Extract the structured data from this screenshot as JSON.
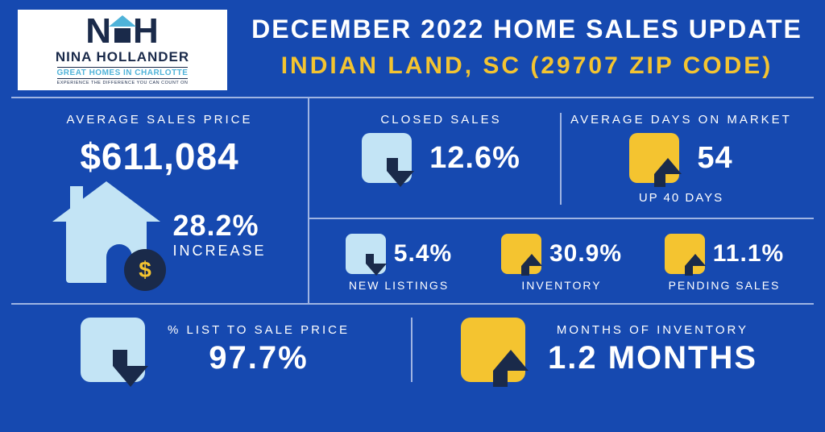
{
  "colors": {
    "background": "#1649b0",
    "divider": "#9fb4e2",
    "accent_yellow": "#f4c430",
    "accent_lightblue": "#c3e4f5",
    "arrow_dark": "#1a2a4a",
    "text_white": "#ffffff"
  },
  "logo": {
    "letter_left": "N",
    "letter_right": "H",
    "name": "NINA HOLLANDER",
    "subtitle": "GREAT HOMES IN CHARLOTTE",
    "tagline": "EXPERIENCE THE DIFFERENCE YOU CAN COUNT ON"
  },
  "header": {
    "title": "DECEMBER 2022 HOME SALES UPDATE",
    "subtitle": "INDIAN LAND, SC (29707 ZIP CODE)",
    "subtitle_color": "#f4c430"
  },
  "avg_price": {
    "label": "AVERAGE SALES PRICE",
    "value": "$611,084",
    "change_pct": "28.2%",
    "change_label": "INCREASE",
    "coin_symbol": "$"
  },
  "closed_sales": {
    "label": "CLOSED SALES",
    "direction": "down",
    "box_color": "#c3e4f5",
    "value": "12.6%"
  },
  "days_on_market": {
    "label": "AVERAGE DAYS ON MARKET",
    "direction": "up",
    "box_color": "#f4c430",
    "value": "54",
    "subtext": "UP 40 DAYS"
  },
  "new_listings": {
    "direction": "down",
    "box_color": "#c3e4f5",
    "value": "5.4%",
    "label": "NEW LISTINGS"
  },
  "inventory": {
    "direction": "up",
    "box_color": "#f4c430",
    "value": "30.9%",
    "label": "INVENTORY"
  },
  "pending_sales": {
    "direction": "up",
    "box_color": "#f4c430",
    "value": "11.1%",
    "label": "PENDING SALES"
  },
  "list_to_sale": {
    "label": "% LIST TO SALE PRICE",
    "direction": "down",
    "box_color": "#c3e4f5",
    "value": "97.7%"
  },
  "months_inventory": {
    "label": "MONTHS OF INVENTORY",
    "direction": "up",
    "box_color": "#f4c430",
    "value": "1.2 MONTHS"
  }
}
